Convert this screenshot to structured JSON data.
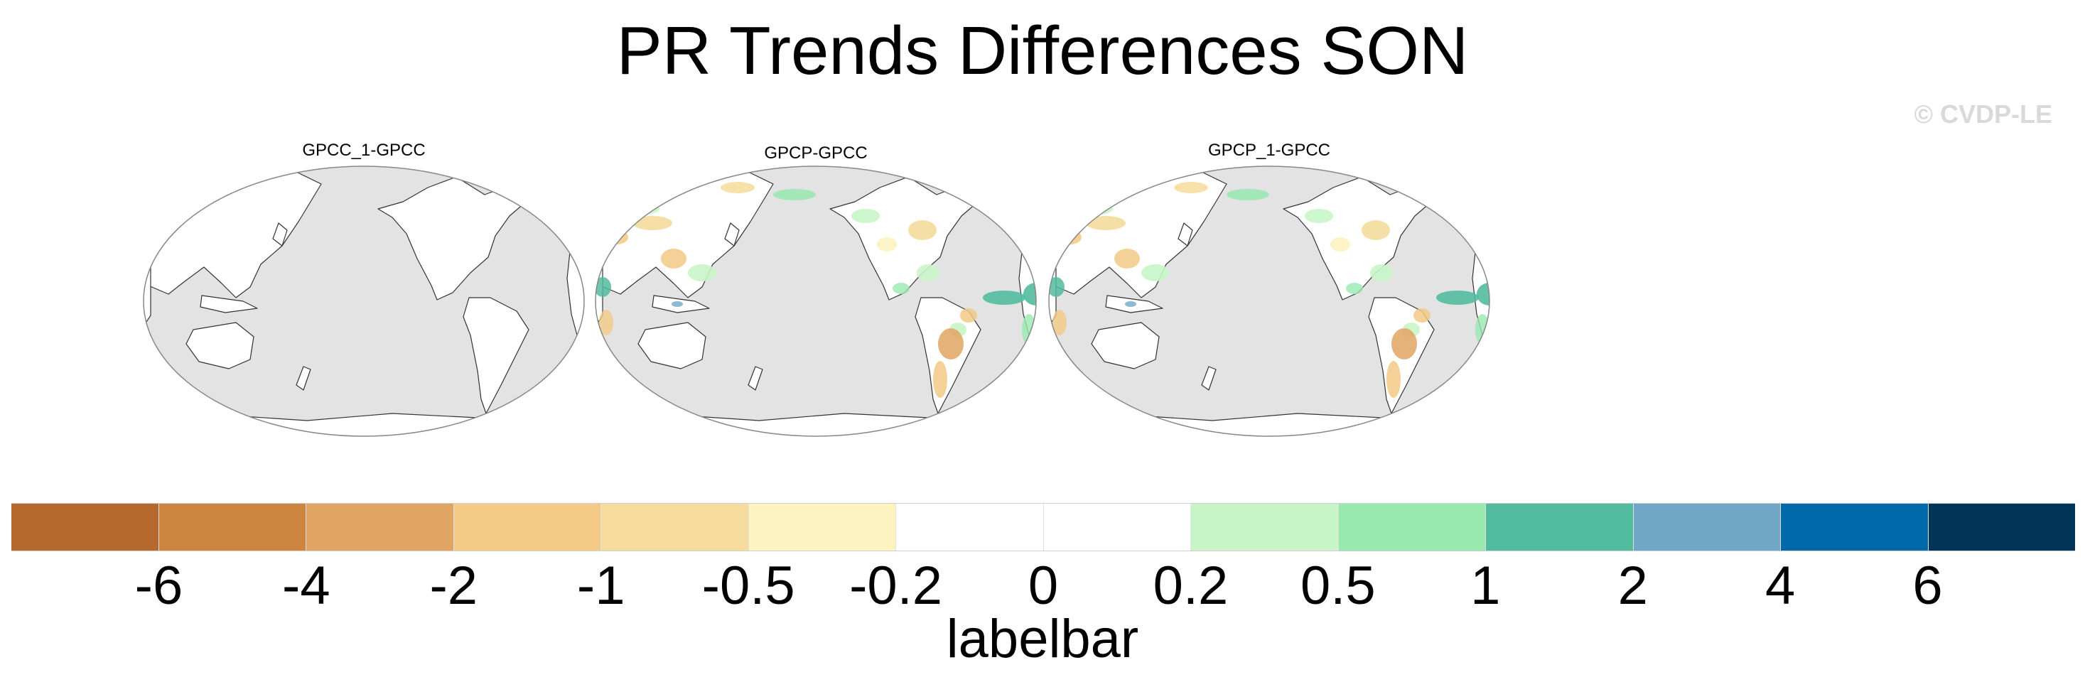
{
  "title": "PR Trends Differences SON",
  "watermark": "© CVDP-LE",
  "panels": [
    {
      "title": "GPCC_1-GPCC"
    },
    {
      "title": "GPCP-GPCC"
    },
    {
      "title": "GPCP_1-GPCC"
    }
  ],
  "colorbar": {
    "label": "labelbar",
    "ticks": [
      "-6",
      "-4",
      "-2",
      "-1",
      "-0.5",
      "-0.2",
      "0",
      "0.2",
      "0.5",
      "1",
      "2",
      "4",
      "6"
    ],
    "colors": [
      "#b5692c",
      "#cd853f",
      "#e0a563",
      "#f2c985",
      "#f5dc9c",
      "#fcf3c1",
      "#ffffff",
      "#ffffff",
      "#c8f5c8",
      "#98e8b0",
      "#52bb9e",
      "#71a7c6",
      "#0069aa",
      "#003557"
    ]
  },
  "map_colors": {
    "ocean": "#e3e3e3",
    "land": "#ffffff",
    "coast": "#333333"
  }
}
